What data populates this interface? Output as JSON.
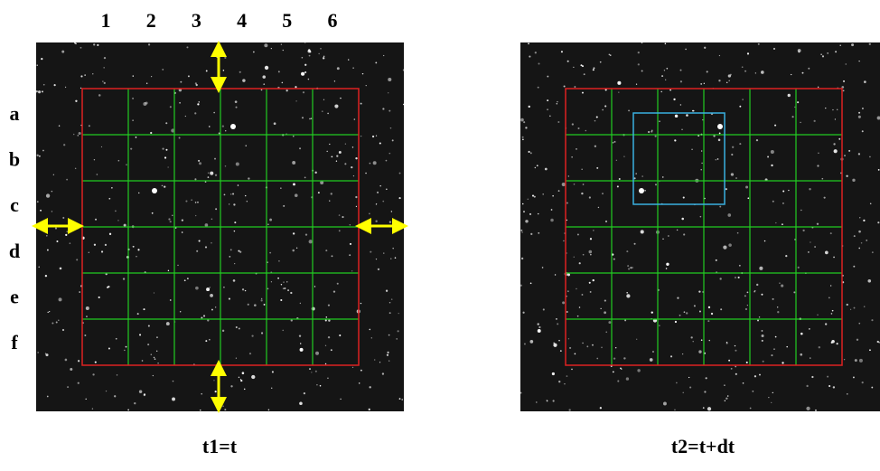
{
  "columns": [
    "1",
    "2",
    "3",
    "4",
    "5",
    "6"
  ],
  "rows": [
    "a",
    "b",
    "c",
    "d",
    "e",
    "f"
  ],
  "panels": [
    {
      "caption": "t1=t"
    },
    {
      "caption": "t2=t+dt"
    }
  ]
}
